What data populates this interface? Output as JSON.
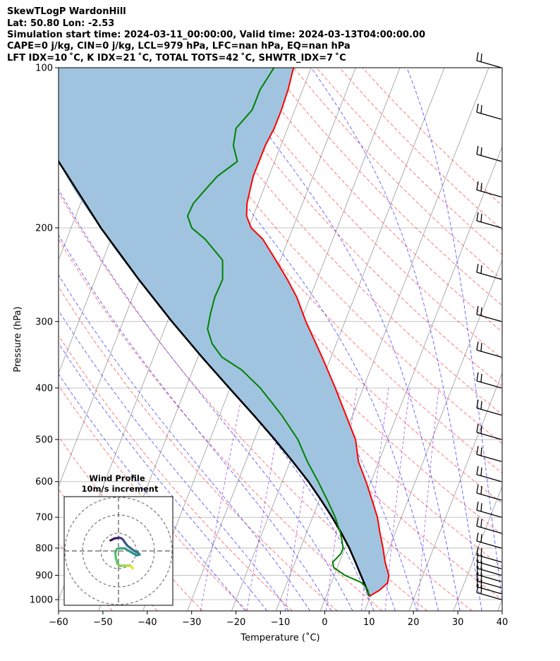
{
  "header": {
    "line1": "SkewTLogP WardonHill",
    "line2": "Lat: 50.80   Lon: -2.53",
    "line3": "Simulation start time: 2024-03-11_00:00:00, Valid time: 2024-03-13T04:00:00.00",
    "line4": "CAPE=0 j/kg, CIN=0 j/kg, LCL=979 hPa, LFC=nan hPa, EQ=nan hPa",
    "line5": "LFT IDX=10 ˚C, K IDX=21 ˚C, TOTAL TOTS=42 ˚C, SHWTR_IDX=7 ˚C"
  },
  "colors": {
    "temperature": "#ff0000",
    "dewpoint": "#008000",
    "parcel": "#000000",
    "cape_fill": "#a0c4df",
    "dry_adiabat": "#ff4d4d",
    "moist_adiabat": "#3b3bff",
    "mixing_ratio": "#8a2be2",
    "isotherm": "#999999"
  },
  "chart_data": {
    "type": "line",
    "xlabel": "Temperature (˚C)",
    "ylabel": "Pressure (hPa)",
    "xlim": [
      -60,
      40
    ],
    "ylim": [
      1050,
      100
    ],
    "x_ticks": [
      "−60",
      "−50",
      "−40",
      "−30",
      "−20",
      "−10",
      "0",
      "10",
      "20",
      "30",
      "40"
    ],
    "y_ticks": [
      "1000",
      "900",
      "800",
      "700",
      "600",
      "500",
      "400",
      "300",
      "200",
      "100"
    ],
    "y_scale": "log",
    "skew": "skew-T",
    "grid": true,
    "series": [
      {
        "key": "temperature",
        "pressure": [
          985,
          960,
          930,
          900,
          850,
          800,
          750,
          700,
          650,
          600,
          550,
          500,
          450,
          400,
          350,
          300,
          270,
          250,
          230,
          210,
          200,
          190,
          180,
          170,
          160,
          150,
          140,
          130,
          120,
          110,
          100
        ],
        "temp": [
          9.8,
          11.5,
          12.7,
          12.3,
          10.3,
          8.6,
          6.6,
          4.6,
          1.9,
          -1.1,
          -4.6,
          -7.2,
          -11.5,
          -16.3,
          -22.0,
          -28.8,
          -33.0,
          -36.7,
          -41.0,
          -45.8,
          -49.4,
          -51.5,
          -52.5,
          -53.0,
          -53.5,
          -53.5,
          -53.5,
          -53.0,
          -53.0,
          -53.3,
          -54.0
        ]
      },
      {
        "key": "dewpoint",
        "pressure": [
          985,
          960,
          930,
          900,
          870,
          850,
          820,
          800,
          770,
          750,
          700,
          650,
          600,
          550,
          500,
          450,
          400,
          370,
          350,
          330,
          310,
          290,
          270,
          250,
          230,
          210,
          200,
          190,
          180,
          170,
          160,
          150,
          140,
          130,
          120,
          110,
          100
        ],
        "temp": [
          9.6,
          8.9,
          7.0,
          2.4,
          -0.8,
          -1.5,
          -0.4,
          -0.4,
          -1.5,
          -2.3,
          -4.9,
          -8.2,
          -11.9,
          -16.1,
          -20.2,
          -26.0,
          -33.2,
          -39.0,
          -44.6,
          -48.0,
          -50.3,
          -51.0,
          -51.5,
          -51.3,
          -53.0,
          -58.8,
          -62.8,
          -64.8,
          -64.6,
          -63.2,
          -61.6,
          -58.4,
          -60.7,
          -61.6,
          -59.6,
          -59.6,
          -58.4
        ]
      },
      {
        "key": "parcel",
        "pressure": [
          985,
          979,
          950,
          900,
          850,
          800,
          750,
          700,
          650,
          600,
          550,
          500,
          450,
          400,
          350,
          300,
          250,
          200,
          150,
          100
        ],
        "temp": [
          9.8,
          9.5,
          8.3,
          6.0,
          3.6,
          1.0,
          -2.1,
          -5.6,
          -9.6,
          -14.1,
          -19.4,
          -25.4,
          -32.3,
          -40.2,
          -49.1,
          -59.0,
          -70.2,
          -83.3,
          -98.7,
          -118.4
        ]
      }
    ],
    "wind_barbs": {
      "pressure": [
        1000,
        975,
        950,
        925,
        900,
        875,
        850,
        800,
        750,
        700,
        650,
        600,
        550,
        500,
        450,
        400,
        350,
        300,
        250,
        200,
        175,
        150,
        125,
        100
      ]
    },
    "hodograph": {
      "title": "Wind Profile",
      "subtitle": "10m/s increment",
      "u": [
        8.0,
        7.5,
        6.5,
        5.0,
        3.0,
        1.0,
        -0.5,
        -1.5,
        -1.8,
        -1.0,
        1.0,
        3.5,
        6.0,
        8.5,
        10.5,
        12.0,
        11.0,
        9.0,
        7.0,
        5.0,
        3.5,
        2.5,
        1.5,
        0.5,
        -1.0,
        -2.5,
        -3.5,
        -4.5
      ],
      "v": [
        -10.0,
        -9.0,
        -8.5,
        -8.3,
        -8.3,
        -8.5,
        -7.5,
        -4.0,
        -1.0,
        1.0,
        1.5,
        1.5,
        0.0,
        -1.5,
        -2.5,
        -2.0,
        -1.0,
        0.0,
        1.5,
        3.0,
        5.0,
        6.5,
        7.2,
        7.5,
        7.3,
        7.0,
        6.5,
        6.0
      ]
    }
  }
}
